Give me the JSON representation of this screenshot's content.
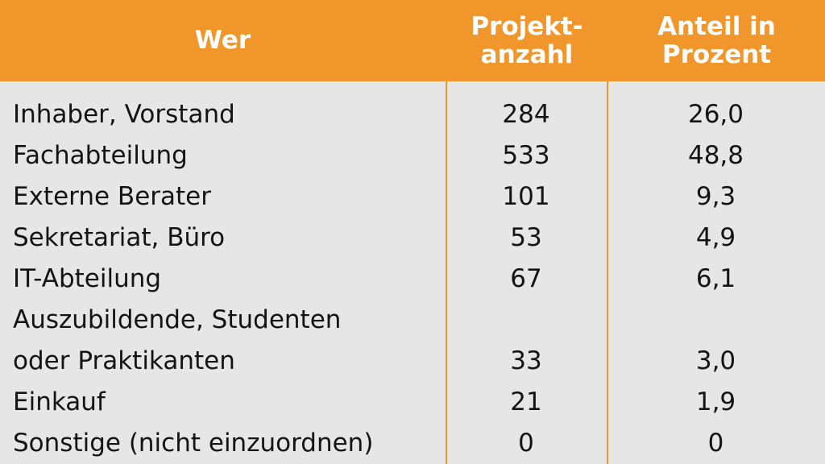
{
  "colors": {
    "header_bg": "#f0962b",
    "header_text": "#ffffff",
    "body_bg": "#e6e6e6",
    "body_text": "#141414"
  },
  "header": {
    "who": "Wer",
    "count": "Projekt-\nanzahl",
    "share": "Anteil in\nProzent"
  },
  "rows": [
    {
      "who": "Inhaber, Vorstand",
      "count": "284",
      "share": "26,0"
    },
    {
      "who": "Fachabteilung",
      "count": "533",
      "share": "48,8"
    },
    {
      "who": "Externe Berater",
      "count": "101",
      "share": "9,3"
    },
    {
      "who": "Sekretariat, Büro",
      "count": "53",
      "share": "4,9"
    },
    {
      "who": "IT-Abteilung",
      "count": "67",
      "share": "6,1"
    },
    {
      "who": "Auszubildende, Studenten\noder Praktikanten",
      "count": "33",
      "share": "3,0"
    },
    {
      "who": "Einkauf",
      "count": "21",
      "share": "1,9"
    },
    {
      "who": "Sonstige (nicht einzuordnen)",
      "count": "0",
      "share": "0"
    }
  ]
}
